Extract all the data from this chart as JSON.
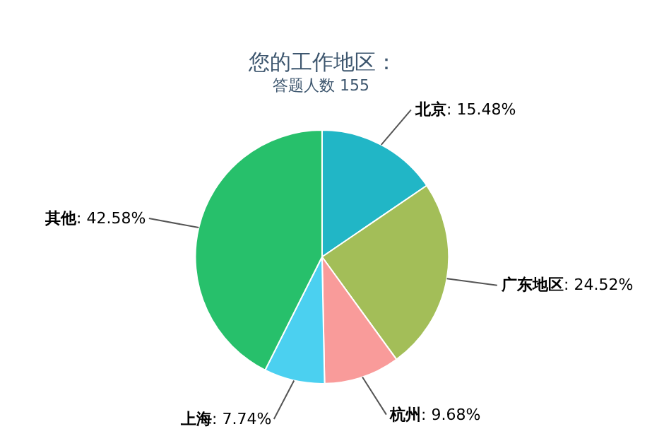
{
  "chart_data": {
    "type": "pie",
    "title": "您的工作地区：",
    "subtitle": "答题人数 155",
    "categories": [
      "北京",
      "广东地区",
      "杭州",
      "上海",
      "其他"
    ],
    "values": [
      15.48,
      24.52,
      9.68,
      7.74,
      42.58
    ],
    "value_labels": [
      ": 15.48%",
      ": 24.52%",
      ": 9.68%",
      ": 7.74%",
      ": 42.58%"
    ],
    "colors": [
      "#21b6c6",
      "#a3be58",
      "#f99b9a",
      "#4bd0f0",
      "#27c06b"
    ],
    "legend": false
  }
}
